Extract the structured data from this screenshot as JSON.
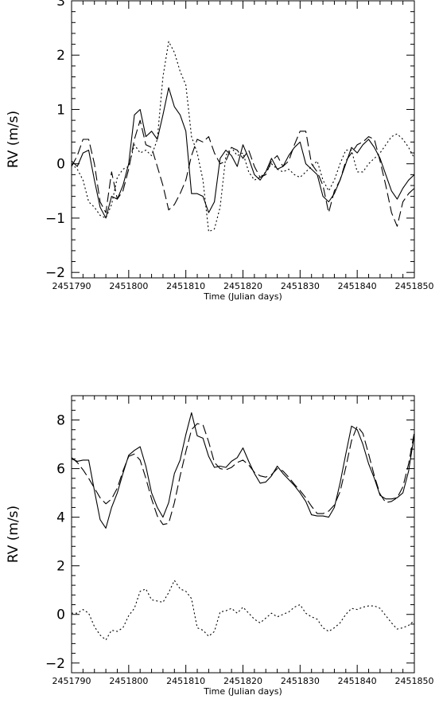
{
  "chart_data": [
    {
      "type": "line",
      "xlabel": "Time (Julian days)",
      "ylabel": "RV (m/s)",
      "xlim": [
        2451790,
        2451850
      ],
      "ylim": [
        -2.1,
        3.0
      ],
      "xticks": [
        2451790,
        2451800,
        2451810,
        2451820,
        2451830,
        2451840,
        2451850
      ],
      "xtick_labels": [
        "2451790",
        "2451800",
        "2451810",
        "2451820",
        "2451830",
        "2451840",
        "2451850"
      ],
      "yticks": [
        -2,
        -1,
        0,
        1,
        2,
        3
      ],
      "ytick_labels": [
        "−2",
        "−1",
        "0",
        "1",
        "2",
        "3"
      ],
      "grid": false,
      "series": [
        {
          "style": "solid",
          "x": [
            2451790,
            2451791,
            2451792,
            2451793,
            2451794,
            2451795,
            2451796,
            2451797,
            2451798,
            2451799,
            2451800,
            2451801,
            2451802,
            2451803,
            2451804,
            2451805,
            2451806,
            2451807,
            2451808,
            2451809,
            2451810,
            2451811,
            2451812,
            2451813,
            2451814,
            2451815,
            2451816,
            2451817,
            2451818,
            2451819,
            2451820,
            2451821,
            2451822,
            2451823,
            2451824,
            2451825,
            2451826,
            2451827,
            2451828,
            2451829,
            2451830,
            2451831,
            2451832,
            2451833,
            2451834,
            2451835,
            2451836,
            2451837,
            2451838,
            2451839,
            2451840,
            2451841,
            2451842,
            2451843,
            2451844,
            2451845,
            2451846,
            2451847,
            2451848,
            2451849,
            2451850
          ],
          "y": [
            0.05,
            -0.05,
            0.2,
            0.25,
            -0.3,
            -0.8,
            -1.0,
            -0.6,
            -0.65,
            -0.4,
            0.0,
            0.9,
            1.0,
            0.5,
            0.6,
            0.45,
            0.9,
            1.4,
            1.05,
            0.9,
            0.6,
            -0.55,
            -0.55,
            -0.6,
            -0.9,
            -0.7,
            0.1,
            0.25,
            0.15,
            -0.05,
            0.35,
            0.1,
            -0.2,
            -0.3,
            -0.15,
            0.1,
            -0.1,
            -0.05,
            0.15,
            0.3,
            0.4,
            0.0,
            -0.1,
            -0.2,
            -0.6,
            -0.7,
            -0.55,
            -0.3,
            0.0,
            0.3,
            0.2,
            0.35,
            0.45,
            0.3,
            0.1,
            -0.2,
            -0.5,
            -0.65,
            -0.45,
            -0.3,
            -0.2
          ]
        },
        {
          "style": "dashed",
          "x": [
            2451790,
            2451791,
            2451792,
            2451793,
            2451794,
            2451795,
            2451796,
            2451797,
            2451798,
            2451799,
            2451800,
            2451801,
            2451802,
            2451803,
            2451804,
            2451805,
            2451806,
            2451807,
            2451808,
            2451809,
            2451810,
            2451811,
            2451812,
            2451813,
            2451814,
            2451815,
            2451816,
            2451817,
            2451818,
            2451819,
            2451820,
            2451821,
            2451822,
            2451823,
            2451824,
            2451825,
            2451826,
            2451827,
            2451828,
            2451829,
            2451830,
            2451831,
            2451832,
            2451833,
            2451834,
            2451835,
            2451836,
            2451837,
            2451838,
            2451839,
            2451840,
            2451841,
            2451842,
            2451843,
            2451844,
            2451845,
            2451846,
            2451847,
            2451848,
            2451849,
            2451850
          ],
          "y": [
            -0.05,
            0.15,
            0.45,
            0.45,
            0.0,
            -0.7,
            -0.9,
            -0.15,
            -0.65,
            -0.5,
            -0.1,
            0.45,
            0.8,
            0.35,
            0.3,
            -0.05,
            -0.4,
            -0.85,
            -0.75,
            -0.55,
            -0.3,
            0.15,
            0.45,
            0.4,
            0.5,
            0.2,
            0.0,
            0.05,
            0.3,
            0.25,
            0.1,
            0.25,
            -0.05,
            -0.25,
            -0.2,
            0.05,
            0.15,
            -0.05,
            0.05,
            0.35,
            0.6,
            0.6,
            0.0,
            -0.15,
            -0.4,
            -0.9,
            -0.5,
            -0.3,
            0.05,
            0.2,
            0.35,
            0.4,
            0.5,
            0.45,
            0.05,
            -0.4,
            -0.9,
            -1.15,
            -0.7,
            -0.55,
            -0.45
          ]
        },
        {
          "style": "dotted",
          "x": [
            2451790,
            2451791,
            2451792,
            2451793,
            2451794,
            2451795,
            2451796,
            2451797,
            2451798,
            2451799,
            2451800,
            2451801,
            2451802,
            2451803,
            2451804,
            2451805,
            2451806,
            2451807,
            2451808,
            2451809,
            2451810,
            2451811,
            2451812,
            2451813,
            2451814,
            2451815,
            2451816,
            2451817,
            2451818,
            2451819,
            2451820,
            2451821,
            2451822,
            2451823,
            2451824,
            2451825,
            2451826,
            2451827,
            2451828,
            2451829,
            2451830,
            2451831,
            2451832,
            2451833,
            2451834,
            2451835,
            2451836,
            2451837,
            2451838,
            2451839,
            2451840,
            2451841,
            2451842,
            2451843,
            2451844,
            2451845,
            2451846,
            2451847,
            2451848,
            2451849,
            2451850
          ],
          "y": [
            0.0,
            -0.1,
            -0.3,
            -0.7,
            -0.8,
            -0.95,
            -1.0,
            -0.75,
            -0.25,
            -0.1,
            -0.05,
            0.35,
            0.2,
            0.25,
            0.15,
            0.45,
            1.6,
            2.25,
            2.05,
            1.7,
            1.45,
            0.5,
            0.2,
            -0.3,
            -1.25,
            -1.2,
            -0.8,
            0.15,
            0.3,
            0.15,
            0.2,
            -0.15,
            -0.3,
            -0.25,
            -0.15,
            0.0,
            -0.1,
            -0.15,
            -0.1,
            -0.2,
            -0.25,
            -0.15,
            -0.05,
            0.05,
            -0.3,
            -0.5,
            -0.3,
            0.0,
            0.25,
            0.25,
            -0.15,
            -0.15,
            0.0,
            0.1,
            0.2,
            0.35,
            0.5,
            0.55,
            0.45,
            0.3,
            0.1
          ]
        }
      ]
    },
    {
      "type": "line",
      "xlabel": "Time (Julian days)",
      "ylabel": "RV (m/s)",
      "xlim": [
        2451790,
        2451850
      ],
      "ylim": [
        -2.4,
        9.0
      ],
      "xticks": [
        2451790,
        2451800,
        2451810,
        2451820,
        2451830,
        2451840,
        2451850
      ],
      "xtick_labels": [
        "2451790",
        "2451800",
        "2451810",
        "2451820",
        "2451830",
        "2451840",
        "2451850"
      ],
      "yticks": [
        -2,
        0,
        2,
        4,
        6,
        8
      ],
      "ytick_labels": [
        "−2",
        "0",
        "2",
        "4",
        "6",
        "8"
      ],
      "grid": false,
      "series": [
        {
          "style": "solid",
          "x": [
            2451790,
            2451791,
            2451792,
            2451793,
            2451794,
            2451795,
            2451796,
            2451797,
            2451798,
            2451799,
            2451800,
            2451801,
            2451802,
            2451803,
            2451804,
            2451805,
            2451806,
            2451807,
            2451808,
            2451809,
            2451810,
            2451811,
            2451812,
            2451813,
            2451814,
            2451815,
            2451816,
            2451817,
            2451818,
            2451819,
            2451820,
            2451821,
            2451822,
            2451823,
            2451824,
            2451825,
            2451826,
            2451827,
            2451828,
            2451829,
            2451830,
            2451831,
            2451832,
            2451833,
            2451834,
            2451835,
            2451836,
            2451837,
            2451838,
            2451839,
            2451840,
            2451841,
            2451842,
            2451843,
            2451844,
            2451845,
            2451846,
            2451847,
            2451848,
            2451849,
            2451850
          ],
          "y": [
            6.4,
            6.3,
            6.35,
            6.35,
            5.1,
            3.9,
            3.55,
            4.4,
            5.0,
            5.8,
            6.55,
            6.75,
            6.9,
            6.1,
            5.0,
            4.4,
            4.0,
            4.6,
            5.8,
            6.35,
            7.4,
            8.3,
            7.35,
            7.25,
            6.5,
            6.05,
            6.1,
            6.05,
            6.3,
            6.45,
            6.85,
            6.3,
            5.8,
            5.4,
            5.45,
            5.7,
            6.1,
            5.8,
            5.55,
            5.3,
            5.0,
            4.65,
            4.1,
            4.05,
            4.05,
            4.0,
            4.4,
            5.4,
            6.6,
            7.75,
            7.6,
            7.0,
            6.2,
            5.6,
            4.9,
            4.75,
            4.75,
            4.8,
            5.0,
            5.9,
            7.4
          ]
        },
        {
          "style": "dashed",
          "x": [
            2451790,
            2451791,
            2451792,
            2451793,
            2451794,
            2451795,
            2451796,
            2451797,
            2451798,
            2451799,
            2451800,
            2451801,
            2451802,
            2451803,
            2451804,
            2451805,
            2451806,
            2451807,
            2451808,
            2451809,
            2451810,
            2451811,
            2451812,
            2451813,
            2451814,
            2451815,
            2451816,
            2451817,
            2451818,
            2451819,
            2451820,
            2451821,
            2451822,
            2451823,
            2451824,
            2451825,
            2451826,
            2451827,
            2451828,
            2451829,
            2451830,
            2451831,
            2451832,
            2451833,
            2451834,
            2451835,
            2451836,
            2451837,
            2451838,
            2451839,
            2451840,
            2451841,
            2451842,
            2451843,
            2451844,
            2451845,
            2451846,
            2451847,
            2451848,
            2451849,
            2451850
          ],
          "y": [
            6.45,
            6.25,
            5.95,
            5.6,
            5.2,
            4.8,
            4.55,
            4.75,
            5.2,
            5.9,
            6.5,
            6.6,
            6.35,
            5.6,
            4.75,
            4.05,
            3.7,
            3.75,
            4.6,
            5.7,
            6.7,
            7.6,
            7.85,
            7.8,
            7.1,
            6.25,
            6.0,
            5.95,
            6.05,
            6.25,
            6.35,
            6.15,
            5.85,
            5.7,
            5.65,
            5.75,
            6.0,
            5.9,
            5.65,
            5.35,
            5.1,
            4.8,
            4.45,
            4.15,
            4.15,
            4.25,
            4.5,
            5.05,
            6.05,
            7.15,
            7.75,
            7.45,
            6.6,
            5.7,
            4.95,
            4.6,
            4.65,
            4.8,
            5.25,
            6.2,
            7.5
          ]
        },
        {
          "style": "dotted",
          "x": [
            2451790,
            2451791,
            2451792,
            2451793,
            2451794,
            2451795,
            2451796,
            2451797,
            2451798,
            2451799,
            2451800,
            2451801,
            2451802,
            2451803,
            2451804,
            2451805,
            2451806,
            2451807,
            2451808,
            2451809,
            2451810,
            2451811,
            2451812,
            2451813,
            2451814,
            2451815,
            2451816,
            2451817,
            2451818,
            2451819,
            2451820,
            2451821,
            2451822,
            2451823,
            2451824,
            2451825,
            2451826,
            2451827,
            2451828,
            2451829,
            2451830,
            2451831,
            2451832,
            2451833,
            2451834,
            2451835,
            2451836,
            2451837,
            2451838,
            2451839,
            2451840,
            2451841,
            2451842,
            2451843,
            2451844,
            2451845,
            2451846,
            2451847,
            2451848,
            2451849,
            2451850
          ],
          "y": [
            0.05,
            0.05,
            0.2,
            0.05,
            -0.5,
            -0.85,
            -1.05,
            -0.65,
            -0.7,
            -0.55,
            -0.05,
            0.25,
            0.95,
            1.05,
            0.6,
            0.55,
            0.5,
            0.9,
            1.4,
            1.05,
            0.95,
            0.65,
            -0.55,
            -0.65,
            -0.9,
            -0.7,
            0.1,
            0.15,
            0.25,
            0.05,
            0.3,
            0.05,
            -0.2,
            -0.35,
            -0.15,
            0.05,
            -0.1,
            0.0,
            0.1,
            0.3,
            0.4,
            0.05,
            -0.1,
            -0.2,
            -0.55,
            -0.7,
            -0.55,
            -0.35,
            0.0,
            0.25,
            0.2,
            0.3,
            0.35,
            0.35,
            0.25,
            -0.05,
            -0.35,
            -0.6,
            -0.55,
            -0.45,
            -0.25
          ]
        }
      ]
    }
  ]
}
